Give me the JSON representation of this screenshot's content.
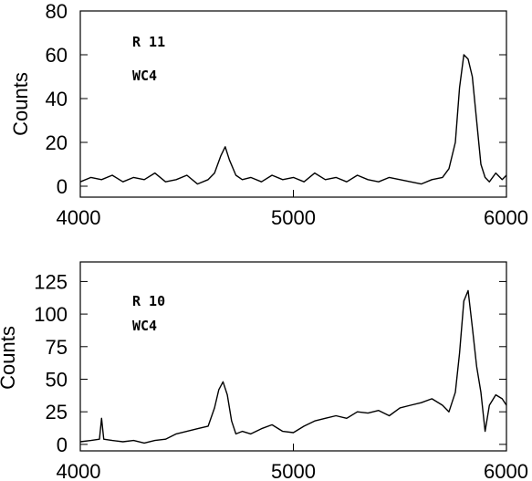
{
  "chart_data": [
    {
      "type": "line",
      "ylabel": "Counts",
      "xlim": [
        4000,
        6000
      ],
      "ylim": [
        -5,
        80
      ],
      "xticks": [
        4000,
        5000,
        6000
      ],
      "xtick_labels": [
        "4000",
        "5000",
        "6000"
      ],
      "yticks": [
        0,
        20,
        40,
        60,
        80
      ],
      "ytick_labels": [
        "0",
        "20",
        "40",
        "60",
        "80"
      ],
      "annotations": [
        "R 11",
        "WC4"
      ],
      "series": [
        {
          "x": [
            4000,
            4050,
            4100,
            4150,
            4200,
            4250,
            4300,
            4350,
            4400,
            4450,
            4500,
            4550,
            4600,
            4630,
            4660,
            4680,
            4700,
            4730,
            4760,
            4800,
            4850,
            4900,
            4950,
            5000,
            5050,
            5100,
            5150,
            5200,
            5250,
            5300,
            5350,
            5400,
            5450,
            5500,
            5550,
            5600,
            5650,
            5700,
            5730,
            5760,
            5780,
            5800,
            5820,
            5840,
            5860,
            5880,
            5900,
            5920,
            5950,
            5980,
            6000
          ],
          "y": [
            2,
            4,
            3,
            5,
            2,
            4,
            3,
            6,
            2,
            3,
            5,
            1,
            3,
            6,
            14,
            18,
            12,
            5,
            3,
            4,
            2,
            5,
            3,
            4,
            2,
            6,
            3,
            4,
            2,
            5,
            3,
            2,
            4,
            3,
            2,
            1,
            3,
            4,
            8,
            20,
            45,
            60,
            58,
            50,
            30,
            10,
            4,
            2,
            6,
            3,
            5
          ]
        }
      ]
    },
    {
      "type": "line",
      "ylabel": "Counts",
      "xlim": [
        4000,
        6000
      ],
      "ylim": [
        -5,
        140
      ],
      "xticks": [
        4000,
        5000,
        6000
      ],
      "xtick_labels": [
        "4000",
        "5000",
        "6000"
      ],
      "yticks": [
        0,
        25,
        50,
        75,
        100,
        125
      ],
      "ytick_labels": [
        "0",
        "25",
        "50",
        "75",
        "100",
        "125"
      ],
      "annotations": [
        "R 10",
        "WC4"
      ],
      "series": [
        {
          "x": [
            4000,
            4050,
            4090,
            4100,
            4110,
            4150,
            4200,
            4250,
            4300,
            4350,
            4400,
            4450,
            4500,
            4550,
            4600,
            4630,
            4650,
            4670,
            4690,
            4710,
            4730,
            4760,
            4800,
            4850,
            4900,
            4950,
            5000,
            5050,
            5100,
            5150,
            5200,
            5250,
            5300,
            5350,
            5400,
            5450,
            5500,
            5550,
            5600,
            5650,
            5700,
            5730,
            5760,
            5780,
            5800,
            5820,
            5840,
            5860,
            5880,
            5900,
            5920,
            5950,
            5980,
            6000
          ],
          "y": [
            2,
            3,
            4,
            20,
            4,
            3,
            2,
            3,
            1,
            3,
            4,
            8,
            10,
            12,
            14,
            28,
            42,
            48,
            38,
            18,
            8,
            10,
            8,
            12,
            15,
            10,
            9,
            14,
            18,
            20,
            22,
            20,
            25,
            24,
            26,
            22,
            28,
            30,
            32,
            35,
            30,
            25,
            40,
            70,
            110,
            118,
            90,
            60,
            40,
            10,
            30,
            38,
            35,
            30
          ]
        }
      ]
    }
  ]
}
